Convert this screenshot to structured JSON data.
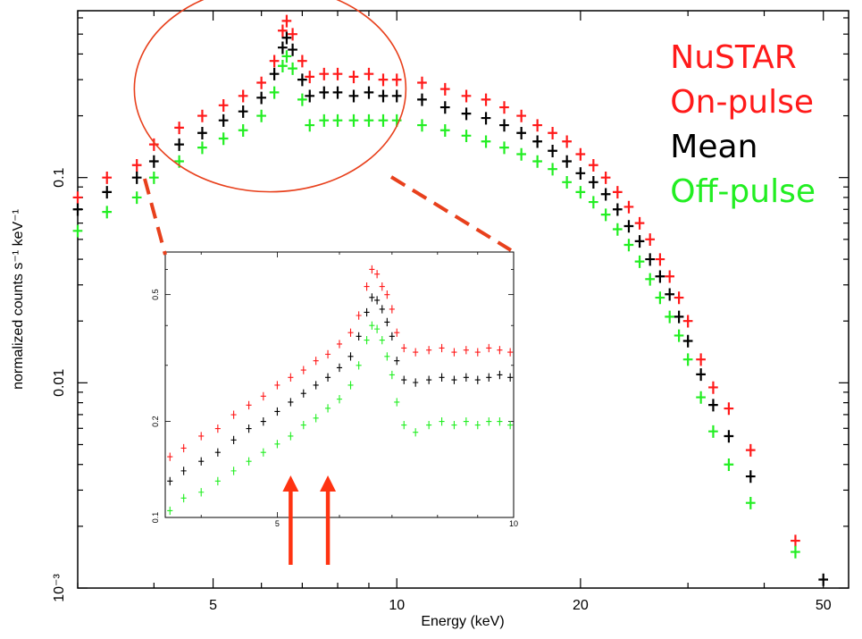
{
  "chart_data": {
    "type": "scatter",
    "xlabel": "Energy (keV)",
    "ylabel": "normalized counts s⁻¹ keV⁻¹",
    "xscale": "log",
    "yscale": "log",
    "xlim": [
      3,
      55
    ],
    "ylim": [
      0.001,
      0.65
    ],
    "x_ticks": [
      5,
      10,
      20,
      50
    ],
    "y_ticks": [
      0.001,
      0.01,
      0.1
    ],
    "y_tick_labels": [
      "10⁻³",
      "0.01",
      "0.1"
    ],
    "legend": {
      "title": "NuSTAR",
      "title_color": "#ff1a1a",
      "placement": "top-right",
      "entries": [
        {
          "label": "On-pulse",
          "color": "#ff1a1a"
        },
        {
          "label": "Mean",
          "color": "#000000"
        },
        {
          "label": "Off-pulse",
          "color": "#22ee22"
        }
      ]
    },
    "series": [
      {
        "name": "On-pulse",
        "color": "#ff1a1a",
        "points": [
          [
            3.0,
            0.08
          ],
          [
            3.35,
            0.1
          ],
          [
            3.75,
            0.115
          ],
          [
            4.0,
            0.145
          ],
          [
            4.4,
            0.175
          ],
          [
            4.8,
            0.2
          ],
          [
            5.2,
            0.225
          ],
          [
            5.6,
            0.25
          ],
          [
            6.0,
            0.29
          ],
          [
            6.3,
            0.37
          ],
          [
            6.5,
            0.52
          ],
          [
            6.6,
            0.58
          ],
          [
            6.75,
            0.5
          ],
          [
            7.0,
            0.37
          ],
          [
            7.2,
            0.31
          ],
          [
            7.6,
            0.32
          ],
          [
            8.0,
            0.32
          ],
          [
            8.5,
            0.31
          ],
          [
            9.0,
            0.32
          ],
          [
            9.5,
            0.3
          ],
          [
            10,
            0.3
          ],
          [
            11,
            0.29
          ],
          [
            12,
            0.27
          ],
          [
            13,
            0.25
          ],
          [
            14,
            0.24
          ],
          [
            15,
            0.22
          ],
          [
            16,
            0.2
          ],
          [
            17,
            0.18
          ],
          [
            18,
            0.165
          ],
          [
            19,
            0.15
          ],
          [
            20,
            0.13
          ],
          [
            21,
            0.115
          ],
          [
            22,
            0.1
          ],
          [
            23,
            0.085
          ],
          [
            24,
            0.072
          ],
          [
            25,
            0.06
          ],
          [
            26,
            0.05
          ],
          [
            27,
            0.04
          ],
          [
            28,
            0.033
          ],
          [
            29,
            0.026
          ],
          [
            30,
            0.02
          ],
          [
            31.5,
            0.013
          ],
          [
            33,
            0.0095
          ],
          [
            35,
            0.0075
          ],
          [
            38,
            0.0047
          ],
          [
            45,
            0.0017
          ]
        ]
      },
      {
        "name": "Mean",
        "color": "#000000",
        "points": [
          [
            3.0,
            0.07
          ],
          [
            3.35,
            0.085
          ],
          [
            3.75,
            0.1
          ],
          [
            4.0,
            0.12
          ],
          [
            4.4,
            0.145
          ],
          [
            4.8,
            0.165
          ],
          [
            5.2,
            0.19
          ],
          [
            5.6,
            0.21
          ],
          [
            6.0,
            0.245
          ],
          [
            6.3,
            0.32
          ],
          [
            6.5,
            0.43
          ],
          [
            6.6,
            0.48
          ],
          [
            6.75,
            0.42
          ],
          [
            7.0,
            0.3
          ],
          [
            7.2,
            0.25
          ],
          [
            7.6,
            0.26
          ],
          [
            8.0,
            0.26
          ],
          [
            8.5,
            0.25
          ],
          [
            9.0,
            0.26
          ],
          [
            9.5,
            0.25
          ],
          [
            10,
            0.25
          ],
          [
            11,
            0.24
          ],
          [
            12,
            0.22
          ],
          [
            13,
            0.205
          ],
          [
            14,
            0.195
          ],
          [
            15,
            0.18
          ],
          [
            16,
            0.165
          ],
          [
            17,
            0.15
          ],
          [
            18,
            0.135
          ],
          [
            19,
            0.12
          ],
          [
            20,
            0.105
          ],
          [
            21,
            0.095
          ],
          [
            22,
            0.083
          ],
          [
            23,
            0.07
          ],
          [
            24,
            0.058
          ],
          [
            25,
            0.049
          ],
          [
            26,
            0.04
          ],
          [
            27,
            0.033
          ],
          [
            28,
            0.027
          ],
          [
            29,
            0.021
          ],
          [
            30,
            0.016
          ],
          [
            31.5,
            0.011
          ],
          [
            33,
            0.0078
          ],
          [
            35,
            0.0055
          ],
          [
            38,
            0.0035
          ],
          [
            50,
            0.0011
          ]
        ]
      },
      {
        "name": "Off-pulse",
        "color": "#22ee22",
        "points": [
          [
            3.0,
            0.055
          ],
          [
            3.35,
            0.068
          ],
          [
            3.75,
            0.08
          ],
          [
            4.0,
            0.1
          ],
          [
            4.4,
            0.12
          ],
          [
            4.8,
            0.14
          ],
          [
            5.2,
            0.155
          ],
          [
            5.6,
            0.17
          ],
          [
            6.0,
            0.2
          ],
          [
            6.3,
            0.26
          ],
          [
            6.5,
            0.35
          ],
          [
            6.6,
            0.39
          ],
          [
            6.75,
            0.34
          ],
          [
            7.0,
            0.24
          ],
          [
            7.2,
            0.18
          ],
          [
            7.6,
            0.19
          ],
          [
            8.0,
            0.19
          ],
          [
            8.5,
            0.19
          ],
          [
            9.0,
            0.19
          ],
          [
            9.5,
            0.19
          ],
          [
            10,
            0.19
          ],
          [
            11,
            0.18
          ],
          [
            12,
            0.17
          ],
          [
            13,
            0.16
          ],
          [
            14,
            0.15
          ],
          [
            15,
            0.14
          ],
          [
            16,
            0.13
          ],
          [
            17,
            0.12
          ],
          [
            18,
            0.11
          ],
          [
            19,
            0.095
          ],
          [
            20,
            0.085
          ],
          [
            21,
            0.076
          ],
          [
            22,
            0.066
          ],
          [
            23,
            0.056
          ],
          [
            24,
            0.047
          ],
          [
            25,
            0.039
          ],
          [
            26,
            0.032
          ],
          [
            27,
            0.026
          ],
          [
            28,
            0.021
          ],
          [
            29,
            0.017
          ],
          [
            30,
            0.013
          ],
          [
            31.5,
            0.0085
          ],
          [
            33,
            0.0058
          ],
          [
            35,
            0.004
          ],
          [
            38,
            0.0026
          ],
          [
            45,
            0.0015
          ]
        ]
      }
    ],
    "inset": {
      "type": "scatter",
      "xscale": "log",
      "yscale": "log",
      "xlim": [
        3.6,
        10
      ],
      "ylim": [
        0.1,
        0.68
      ],
      "x_ticks": [
        5,
        10
      ],
      "y_ticks": [
        0.1,
        0.2,
        0.5
      ],
      "series": [
        {
          "name": "On-pulse",
          "color": "#ff1a1a",
          "points": [
            [
              3.65,
              0.155
            ],
            [
              3.8,
              0.165
            ],
            [
              4.0,
              0.18
            ],
            [
              4.2,
              0.19
            ],
            [
              4.4,
              0.21
            ],
            [
              4.6,
              0.225
            ],
            [
              4.8,
              0.24
            ],
            [
              5.0,
              0.26
            ],
            [
              5.2,
              0.275
            ],
            [
              5.4,
              0.29
            ],
            [
              5.6,
              0.31
            ],
            [
              5.8,
              0.325
            ],
            [
              6.0,
              0.35
            ],
            [
              6.2,
              0.38
            ],
            [
              6.35,
              0.43
            ],
            [
              6.5,
              0.53
            ],
            [
              6.6,
              0.6
            ],
            [
              6.7,
              0.58
            ],
            [
              6.8,
              0.53
            ],
            [
              6.9,
              0.5
            ],
            [
              7.0,
              0.45
            ],
            [
              7.1,
              0.38
            ],
            [
              7.25,
              0.34
            ],
            [
              7.5,
              0.33
            ],
            [
              7.8,
              0.335
            ],
            [
              8.1,
              0.34
            ],
            [
              8.4,
              0.33
            ],
            [
              8.7,
              0.335
            ],
            [
              9.0,
              0.33
            ],
            [
              9.3,
              0.34
            ],
            [
              9.6,
              0.335
            ],
            [
              9.9,
              0.33
            ]
          ]
        },
        {
          "name": "Mean",
          "color": "#000000",
          "points": [
            [
              3.65,
              0.13
            ],
            [
              3.8,
              0.14
            ],
            [
              4.0,
              0.15
            ],
            [
              4.2,
              0.16
            ],
            [
              4.4,
              0.175
            ],
            [
              4.6,
              0.19
            ],
            [
              4.8,
              0.2
            ],
            [
              5.0,
              0.215
            ],
            [
              5.2,
              0.23
            ],
            [
              5.4,
              0.245
            ],
            [
              5.6,
              0.26
            ],
            [
              5.8,
              0.275
            ],
            [
              6.0,
              0.295
            ],
            [
              6.2,
              0.32
            ],
            [
              6.35,
              0.37
            ],
            [
              6.5,
              0.44
            ],
            [
              6.6,
              0.49
            ],
            [
              6.7,
              0.48
            ],
            [
              6.8,
              0.45
            ],
            [
              6.9,
              0.41
            ],
            [
              7.0,
              0.37
            ],
            [
              7.1,
              0.31
            ],
            [
              7.25,
              0.27
            ],
            [
              7.5,
              0.265
            ],
            [
              7.8,
              0.27
            ],
            [
              8.1,
              0.275
            ],
            [
              8.4,
              0.27
            ],
            [
              8.7,
              0.275
            ],
            [
              9.0,
              0.27
            ],
            [
              9.3,
              0.275
            ],
            [
              9.6,
              0.28
            ],
            [
              9.9,
              0.275
            ]
          ]
        },
        {
          "name": "Off-pulse",
          "color": "#22ee22",
          "points": [
            [
              3.65,
              0.105
            ],
            [
              3.8,
              0.115
            ],
            [
              4.0,
              0.12
            ],
            [
              4.2,
              0.13
            ],
            [
              4.4,
              0.14
            ],
            [
              4.6,
              0.15
            ],
            [
              4.8,
              0.16
            ],
            [
              5.0,
              0.17
            ],
            [
              5.2,
              0.18
            ],
            [
              5.4,
              0.195
            ],
            [
              5.6,
              0.205
            ],
            [
              5.8,
              0.22
            ],
            [
              6.0,
              0.235
            ],
            [
              6.2,
              0.26
            ],
            [
              6.35,
              0.3
            ],
            [
              6.5,
              0.36
            ],
            [
              6.6,
              0.4
            ],
            [
              6.7,
              0.39
            ],
            [
              6.8,
              0.36
            ],
            [
              6.9,
              0.32
            ],
            [
              7.0,
              0.28
            ],
            [
              7.1,
              0.23
            ],
            [
              7.25,
              0.195
            ],
            [
              7.5,
              0.185
            ],
            [
              7.8,
              0.195
            ],
            [
              8.1,
              0.2
            ],
            [
              8.4,
              0.195
            ],
            [
              8.7,
              0.2
            ],
            [
              9.0,
              0.195
            ],
            [
              9.3,
              0.2
            ],
            [
              9.6,
              0.2
            ],
            [
              9.9,
              0.195
            ]
          ]
        }
      ]
    },
    "annotations": {
      "highlight_ellipse": {
        "center": [
          6.2,
          0.27
        ],
        "color": "#e8401c"
      },
      "arrows": [
        {
          "x": 5.2,
          "color": "#ff3311"
        },
        {
          "x": 5.8,
          "color": "#ff3311"
        }
      ]
    }
  }
}
